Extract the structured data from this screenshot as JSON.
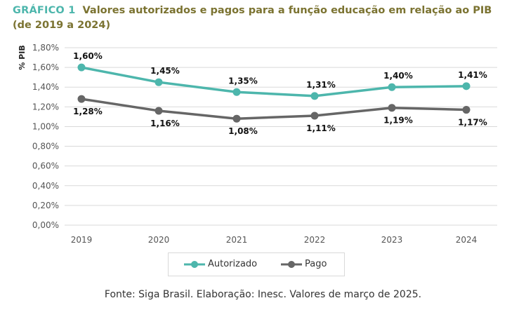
{
  "title": {
    "label": "GRÁFICO 1",
    "line1": "Valores autorizados e pagos para a função educação em relação ao PIB",
    "line2": "(de 2019 a 2024)"
  },
  "source": "Fonte: Siga Brasil. Elaboração: Inesc. Valores de março de 2025.",
  "colors": {
    "autorizado": "#4db6ac",
    "pago": "#666666",
    "title": "#7b7331",
    "grid": "#d9d9d9"
  },
  "chart_data": {
    "type": "line",
    "x": [
      "2019",
      "2020",
      "2021",
      "2022",
      "2023",
      "2024"
    ],
    "ylabel": "% PIB",
    "ylim": [
      0,
      1.8
    ],
    "yticks": [
      "0,00%",
      "0,20%",
      "0,40%",
      "0,60%",
      "0,80%",
      "1,00%",
      "1,20%",
      "1,40%",
      "1,60%",
      "1,80%"
    ],
    "grid": true,
    "legend_position": "bottom",
    "series": [
      {
        "name": "Autorizado",
        "values": [
          1.6,
          1.45,
          1.35,
          1.31,
          1.4,
          1.41
        ],
        "labels": [
          "1,60%",
          "1,45%",
          "1,35%",
          "1,31%",
          "1,40%",
          "1,41%"
        ]
      },
      {
        "name": "Pago",
        "values": [
          1.28,
          1.16,
          1.08,
          1.11,
          1.19,
          1.17
        ],
        "labels": [
          "1,28%",
          "1,16%",
          "1,08%",
          "1,11%",
          "1,19%",
          "1,17%"
        ]
      }
    ]
  }
}
